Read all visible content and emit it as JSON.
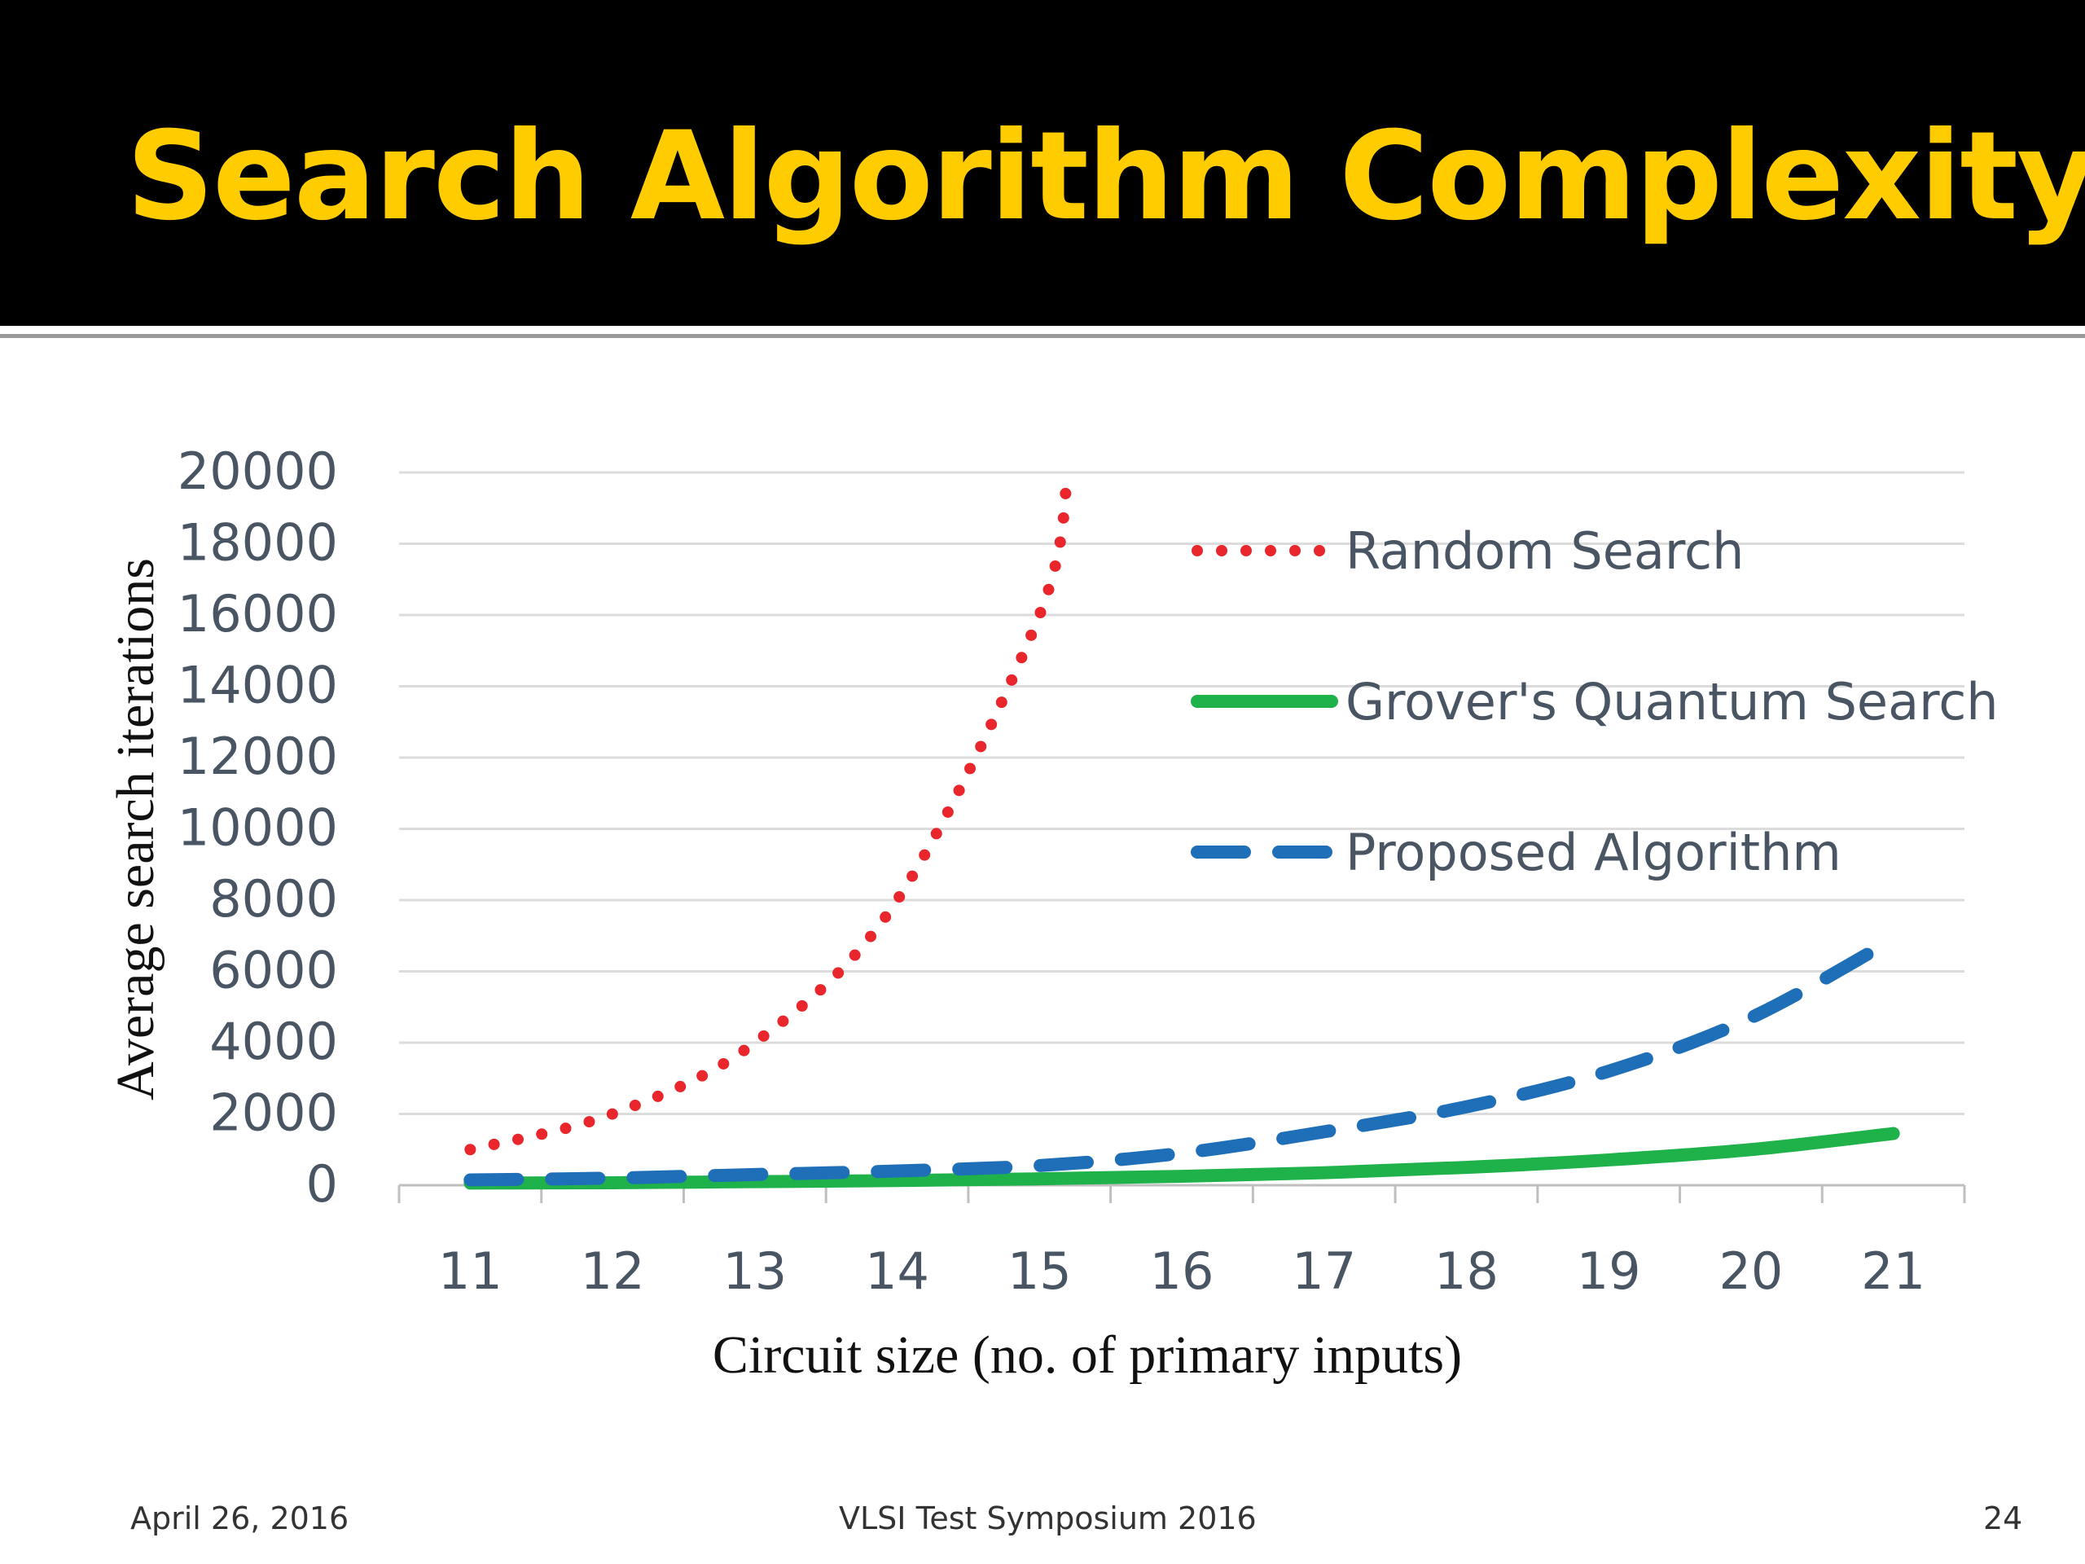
{
  "slide": {
    "title": "Search Algorithm Complexity",
    "title_color": "#ffcc00",
    "footer_left": "April 26, 2016",
    "footer_center": "VLSI Test Symposium 2016",
    "footer_right": "24"
  },
  "chart_data": {
    "type": "line",
    "title": "",
    "xlabel": "Circuit size (no. of primary inputs)",
    "ylabel": "Average search iterations",
    "x": [
      11,
      12,
      13,
      14,
      15,
      16,
      17,
      18,
      19,
      20,
      21
    ],
    "ylim": [
      0,
      20000
    ],
    "yticks": [
      0,
      2000,
      4000,
      6000,
      8000,
      10000,
      12000,
      14000,
      16000,
      18000,
      20000
    ],
    "grid": true,
    "legend_position": "top-right",
    "series": [
      {
        "name": "Random Search",
        "style": "dotted",
        "color": "#e8262b",
        "x": [
          11,
          12,
          13,
          14,
          15,
          15.2
        ],
        "values": [
          1000,
          2000,
          4000,
          8000,
          16000,
          20000
        ]
      },
      {
        "name": "Grover's Quantum Search",
        "style": "solid",
        "color": "#1fb24a",
        "x": [
          11,
          12,
          13,
          14,
          15,
          16,
          17,
          18,
          19,
          20,
          21
        ],
        "values": [
          60,
          70,
          100,
          130,
          180,
          250,
          350,
          500,
          710,
          1000,
          1450
        ]
      },
      {
        "name": "Proposed Algorithm",
        "style": "dashed",
        "color": "#1f6fb8",
        "x": [
          11,
          12,
          13,
          14,
          15,
          16,
          17,
          18,
          19,
          20,
          21
        ],
        "values": [
          150,
          200,
          300,
          400,
          550,
          900,
          1500,
          2200,
          3200,
          4700,
          6900
        ]
      }
    ]
  }
}
